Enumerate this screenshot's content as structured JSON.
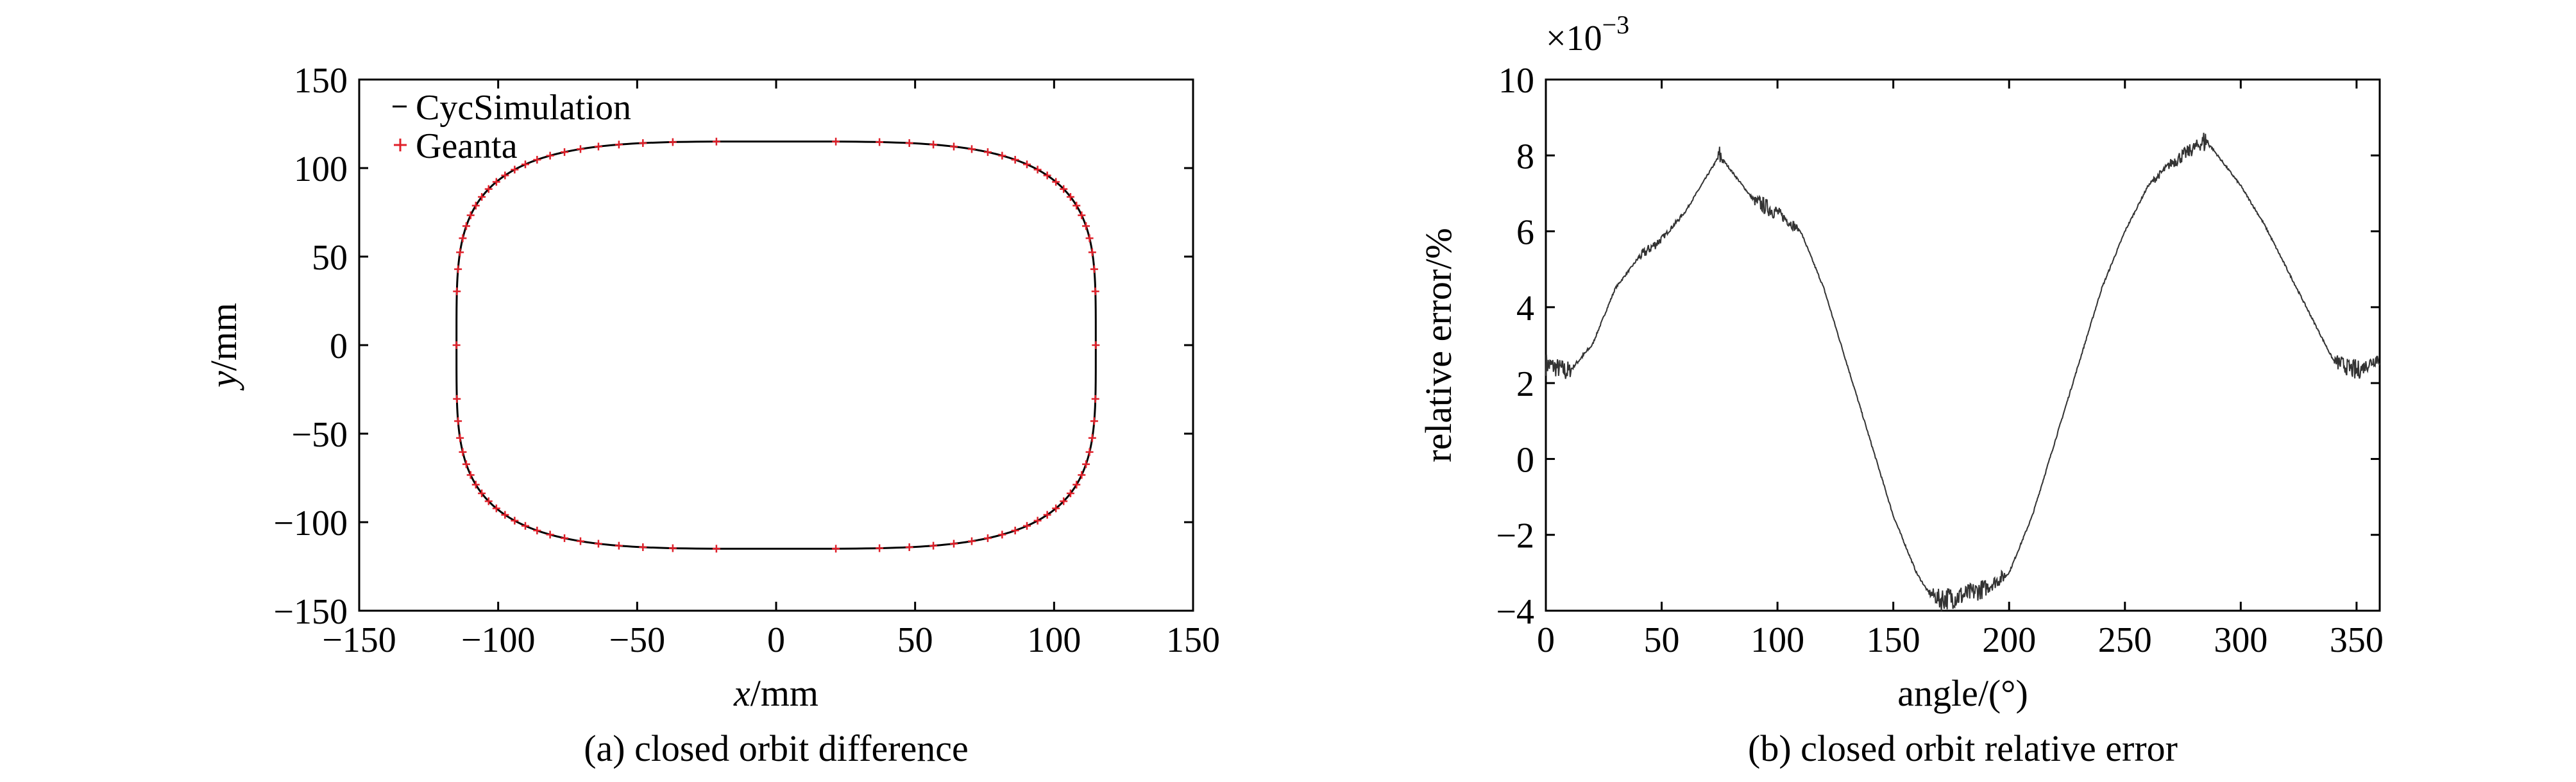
{
  "chart_data": [
    {
      "type": "line",
      "caption": "(a) closed orbit difference",
      "xlabel_var": "x",
      "xlabel_unit": "/mm",
      "ylabel_var": "y",
      "ylabel_unit": "/mm",
      "xlim": [
        -150,
        150
      ],
      "ylim": [
        -150,
        150
      ],
      "xticks": [
        -150,
        -100,
        -50,
        0,
        50,
        100,
        150
      ],
      "yticks": [
        -150,
        -100,
        -50,
        0,
        50,
        100,
        150
      ],
      "xtick_labels": [
        "−150",
        "−100",
        "−50",
        "0",
        "50",
        "100",
        "150"
      ],
      "ytick_labels": [
        "−150",
        "−100",
        "−50",
        "0",
        "50",
        "100",
        "150"
      ],
      "legend_position": "top-left",
      "series": [
        {
          "name": "CycSimulation",
          "color": "#000000",
          "style": "line",
          "shape": {
            "center": [
              0,
              0
            ],
            "semi_axis_x": 115,
            "semi_axis_y": 115,
            "squareness_exponent": 4
          }
        },
        {
          "name": "Geanta",
          "color": "#e0202a",
          "style": "points",
          "shape": {
            "center": [
              0,
              0
            ],
            "semi_axis_x": 115,
            "semi_axis_y": 115,
            "squareness_exponent": 4
          }
        }
      ]
    },
    {
      "type": "line",
      "caption": "(b) closed orbit relative error",
      "xlabel": "angle/(°)",
      "ylabel": "relative error/%",
      "scale_multiplier": "×10",
      "scale_exponent": "−3",
      "xlim": [
        0,
        360
      ],
      "ylim": [
        -4,
        10
      ],
      "xticks": [
        0,
        50,
        100,
        150,
        200,
        250,
        300,
        350
      ],
      "yticks": [
        -4,
        -2,
        0,
        2,
        4,
        6,
        8,
        10
      ],
      "xtick_labels": [
        "0",
        "50",
        "100",
        "150",
        "200",
        "250",
        "300",
        "350"
      ],
      "ytick_labels": [
        "−4",
        "−2",
        "0",
        "2",
        "4",
        "6",
        "8",
        "10"
      ],
      "series": [
        {
          "color": "#333333",
          "x": [
            0,
            10,
            20,
            30,
            40,
            50,
            60,
            70,
            75,
            80,
            90,
            100,
            110,
            120,
            130,
            140,
            150,
            160,
            165,
            170,
            180,
            190,
            200,
            210,
            220,
            230,
            240,
            250,
            260,
            270,
            280,
            285,
            290,
            300,
            310,
            320,
            330,
            340,
            350,
            360
          ],
          "y": [
            2.5,
            2.3,
            3.0,
            4.5,
            5.3,
            5.8,
            6.5,
            7.5,
            8.0,
            7.6,
            6.8,
            6.5,
            6.0,
            4.5,
            2.5,
            0.5,
            -1.5,
            -3.0,
            -3.5,
            -3.7,
            -3.6,
            -3.4,
            -3.0,
            -1.5,
            0.5,
            2.5,
            4.5,
            6.0,
            7.2,
            7.8,
            8.2,
            8.4,
            8.0,
            7.2,
            6.2,
            5.0,
            3.8,
            2.6,
            2.3,
            2.7
          ],
          "noise_amplitude": 0.35
        }
      ]
    }
  ]
}
